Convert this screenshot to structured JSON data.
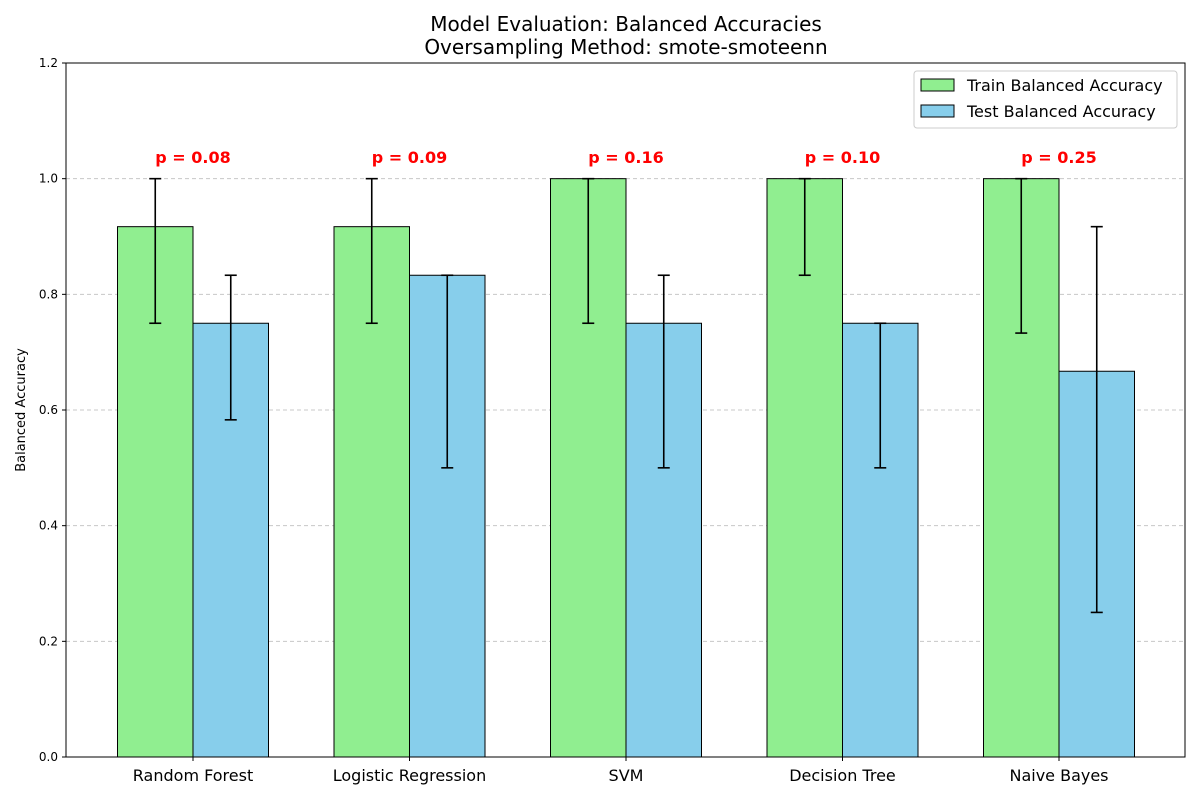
{
  "chart_data": {
    "type": "bar",
    "title": "Model Evaluation: Balanced Accuracies",
    "subtitle": "Oversampling Method: smote-smoteenn",
    "xlabel": "",
    "ylabel": "Balanced Accuracy",
    "ylim": [
      0,
      1.2
    ],
    "yticks": [
      "0.0",
      "0.2",
      "0.4",
      "0.6",
      "0.8",
      "1.0",
      "1.2"
    ],
    "grid": true,
    "legend_position": "top-right",
    "categories": [
      "Random Forest",
      "Logistic Regression",
      "SVM",
      "Decision Tree",
      "Naive Bayes"
    ],
    "series": [
      {
        "name": "Train Balanced Accuracy",
        "color": "#90ee90",
        "values": [
          0.917,
          0.917,
          1.0,
          1.0,
          1.0
        ],
        "err_low": [
          0.75,
          0.75,
          0.75,
          0.833,
          0.733
        ],
        "err_high": [
          1.0,
          1.0,
          1.0,
          1.0,
          1.0
        ]
      },
      {
        "name": "Test Balanced Accuracy",
        "color": "#87ceeb",
        "values": [
          0.75,
          0.833,
          0.75,
          0.75,
          0.667
        ],
        "err_low": [
          0.583,
          0.5,
          0.5,
          0.5,
          0.25
        ],
        "err_high": [
          0.833,
          0.833,
          0.833,
          0.75,
          0.917
        ]
      }
    ],
    "annotations": [
      "p = 0.08",
      "p = 0.09",
      "p = 0.16",
      "p = 0.10",
      "p = 0.25"
    ],
    "annotation_color": "#ff0000"
  }
}
